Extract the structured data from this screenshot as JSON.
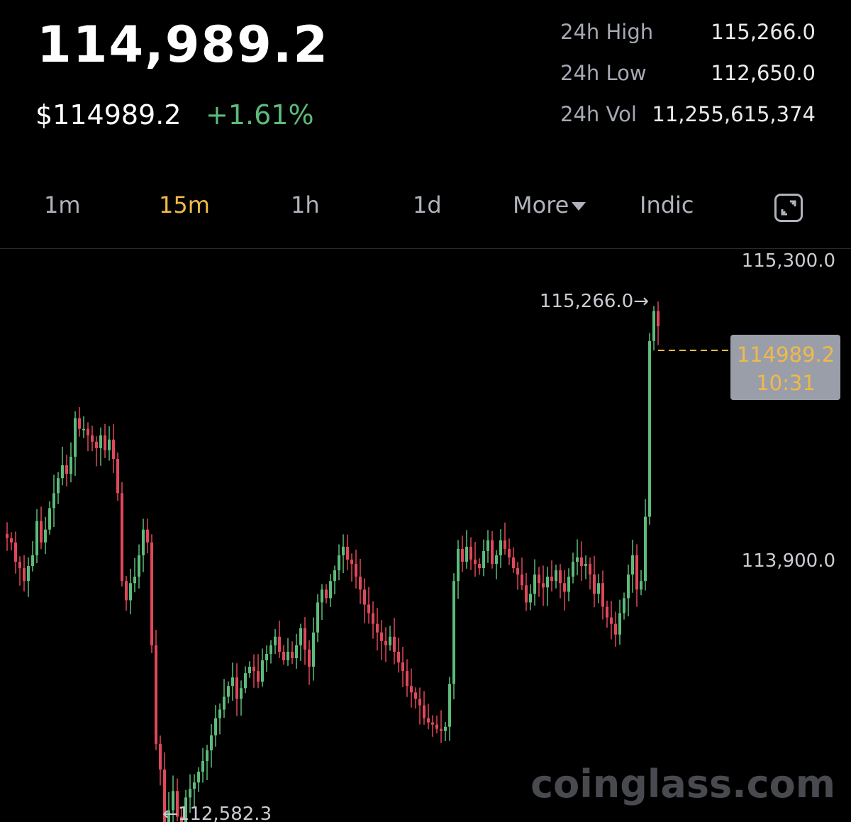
{
  "header": {
    "price": "114,989.2",
    "price_usd": "$114989.2",
    "change_pct": "+1.61%"
  },
  "stats": [
    {
      "label": "24h High",
      "value": "115,266.0"
    },
    {
      "label": "24h Low",
      "value": "112,650.0"
    },
    {
      "label": "24h Vol",
      "value": "11,255,615,374"
    }
  ],
  "tabs": {
    "t1m": "1m",
    "t15m": "15m",
    "t1h": "1h",
    "t1d": "1d",
    "more": "More",
    "indic": "Indic",
    "active": "15m"
  },
  "colors": {
    "up": "#5dbb7a",
    "down": "#e0475a",
    "accent": "#f0b94a",
    "bg": "#000000"
  },
  "watermark": "coinglass.com",
  "chart_data": {
    "type": "candlestick",
    "y_axis_labels": [
      "115,300.0",
      "113,900.0"
    ],
    "y_axis_values": [
      115300,
      113900
    ],
    "high_marker": "115,266.0→",
    "low_marker": "←112,582.3",
    "last_price_label": "114989.2",
    "countdown_label": "10:31",
    "last_price": 114989.2,
    "close_path_points": [
      [
        0,
        114020
      ],
      [
        6,
        114000
      ],
      [
        12,
        113980
      ],
      [
        18,
        113890
      ],
      [
        24,
        113860
      ],
      [
        30,
        113800
      ],
      [
        36,
        113870
      ],
      [
        42,
        113920
      ],
      [
        48,
        114080
      ],
      [
        54,
        113980
      ],
      [
        60,
        114040
      ],
      [
        66,
        114140
      ],
      [
        72,
        114210
      ],
      [
        78,
        114280
      ],
      [
        84,
        114340
      ],
      [
        90,
        114300
      ],
      [
        96,
        114380
      ],
      [
        102,
        114560
      ],
      [
        108,
        114510
      ],
      [
        114,
        114510
      ],
      [
        120,
        114480
      ],
      [
        126,
        114450
      ],
      [
        132,
        114420
      ],
      [
        138,
        114480
      ],
      [
        144,
        114410
      ],
      [
        150,
        114460
      ],
      [
        156,
        114370
      ],
      [
        162,
        114210
      ],
      [
        168,
        113800
      ],
      [
        174,
        113710
      ],
      [
        180,
        113790
      ],
      [
        186,
        113820
      ],
      [
        192,
        113920
      ],
      [
        198,
        114040
      ],
      [
        204,
        113980
      ],
      [
        210,
        113500
      ],
      [
        216,
        113040
      ],
      [
        222,
        112920
      ],
      [
        228,
        112630
      ],
      [
        234,
        112730
      ],
      [
        240,
        112820
      ],
      [
        246,
        112700
      ],
      [
        252,
        112660
      ],
      [
        258,
        112790
      ],
      [
        264,
        112830
      ],
      [
        270,
        112860
      ],
      [
        276,
        112910
      ],
      [
        282,
        112960
      ],
      [
        288,
        113010
      ],
      [
        294,
        113080
      ],
      [
        300,
        113160
      ],
      [
        306,
        113200
      ],
      [
        312,
        113260
      ],
      [
        318,
        113310
      ],
      [
        324,
        113350
      ],
      [
        330,
        113250
      ],
      [
        336,
        113300
      ],
      [
        342,
        113370
      ],
      [
        348,
        113400
      ],
      [
        354,
        113380
      ],
      [
        360,
        113330
      ],
      [
        366,
        113430
      ],
      [
        372,
        113460
      ],
      [
        378,
        113500
      ],
      [
        384,
        113540
      ],
      [
        390,
        113470
      ],
      [
        396,
        113430
      ],
      [
        402,
        113470
      ],
      [
        408,
        113440
      ],
      [
        414,
        113500
      ],
      [
        420,
        113580
      ],
      [
        426,
        113480
      ],
      [
        432,
        113400
      ],
      [
        438,
        113560
      ],
      [
        444,
        113700
      ],
      [
        450,
        113760
      ],
      [
        456,
        113720
      ],
      [
        462,
        113800
      ],
      [
        468,
        113850
      ],
      [
        474,
        113920
      ],
      [
        480,
        113960
      ],
      [
        486,
        113900
      ],
      [
        492,
        113880
      ],
      [
        498,
        113820
      ],
      [
        504,
        113760
      ],
      [
        510,
        113690
      ],
      [
        516,
        113650
      ],
      [
        522,
        113600
      ],
      [
        528,
        113560
      ],
      [
        534,
        113520
      ],
      [
        540,
        113500
      ],
      [
        546,
        113540
      ],
      [
        552,
        113470
      ],
      [
        558,
        113420
      ],
      [
        564,
        113380
      ],
      [
        570,
        113310
      ],
      [
        576,
        113280
      ],
      [
        582,
        113250
      ],
      [
        588,
        113220
      ],
      [
        594,
        113160
      ],
      [
        600,
        113140
      ],
      [
        606,
        113130
      ],
      [
        612,
        113110
      ],
      [
        618,
        113100
      ],
      [
        624,
        113120
      ],
      [
        630,
        113320
      ],
      [
        636,
        113800
      ],
      [
        642,
        113950
      ],
      [
        648,
        113890
      ],
      [
        654,
        113960
      ],
      [
        660,
        113900
      ],
      [
        666,
        113880
      ],
      [
        672,
        113860
      ],
      [
        678,
        113940
      ],
      [
        684,
        113990
      ],
      [
        690,
        113880
      ],
      [
        696,
        113920
      ],
      [
        702,
        113990
      ],
      [
        708,
        113950
      ],
      [
        714,
        113910
      ],
      [
        720,
        113860
      ],
      [
        726,
        113830
      ],
      [
        732,
        113780
      ],
      [
        738,
        113700
      ],
      [
        744,
        113740
      ],
      [
        750,
        113830
      ],
      [
        756,
        113790
      ],
      [
        762,
        113770
      ],
      [
        768,
        113820
      ],
      [
        774,
        113800
      ],
      [
        780,
        113850
      ],
      [
        786,
        113790
      ],
      [
        792,
        113750
      ],
      [
        798,
        113820
      ],
      [
        804,
        113890
      ],
      [
        810,
        113910
      ],
      [
        816,
        113870
      ],
      [
        822,
        113880
      ],
      [
        828,
        113830
      ],
      [
        834,
        113740
      ],
      [
        840,
        113790
      ],
      [
        846,
        113680
      ],
      [
        852,
        113630
      ],
      [
        858,
        113600
      ],
      [
        864,
        113550
      ],
      [
        870,
        113650
      ],
      [
        876,
        113720
      ],
      [
        882,
        113830
      ],
      [
        888,
        113920
      ],
      [
        894,
        113760
      ],
      [
        900,
        113800
      ],
      [
        906,
        114100
      ],
      [
        912,
        114920
      ],
      [
        918,
        115060
      ],
      [
        924,
        114989
      ]
    ]
  }
}
